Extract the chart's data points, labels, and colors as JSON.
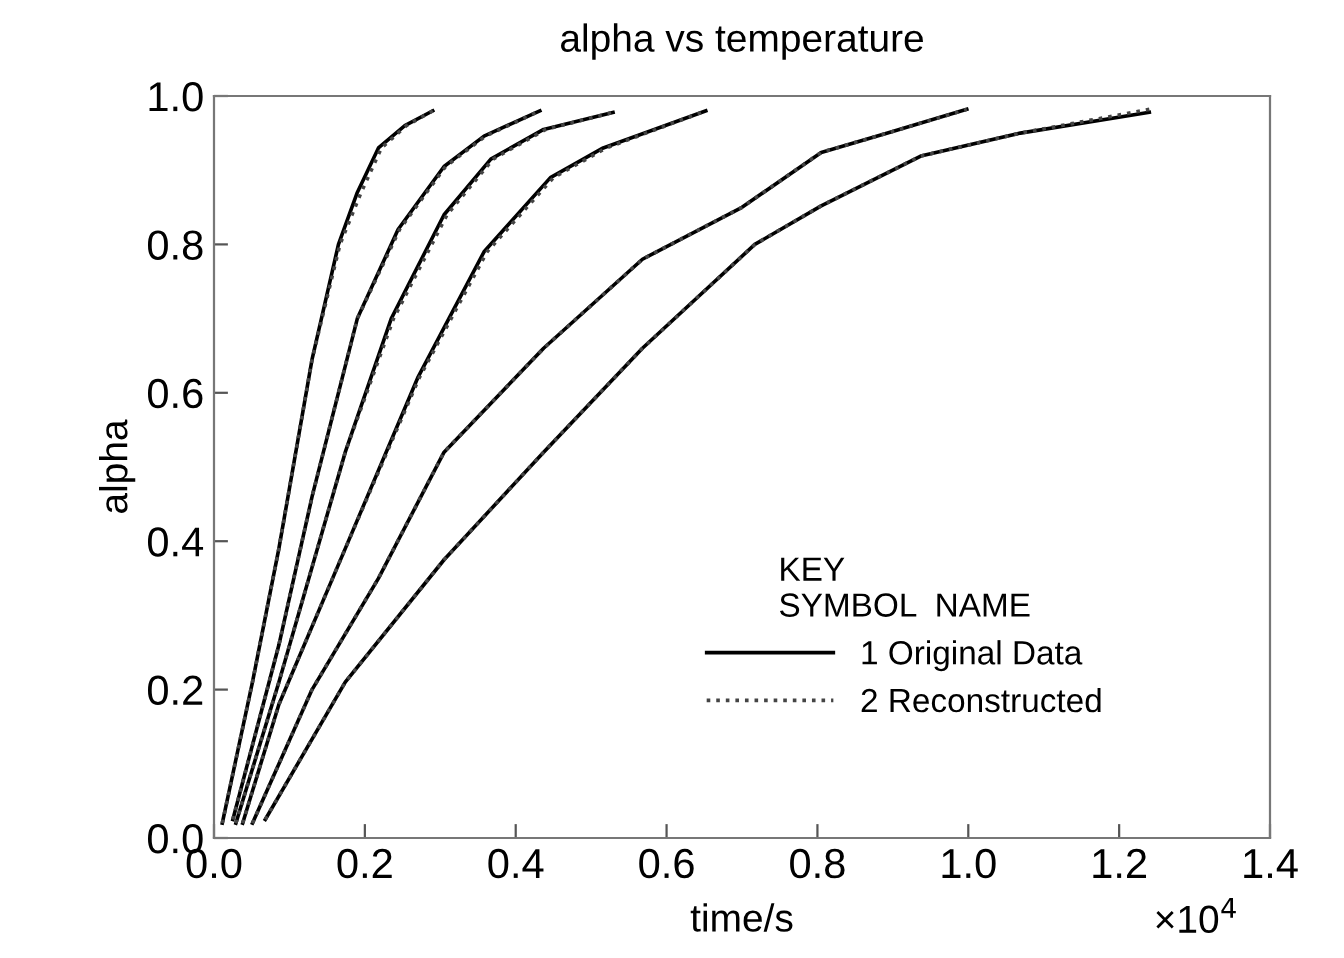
{
  "chart_data": {
    "type": "line",
    "title": "alpha vs temperature",
    "xlabel": "time/s",
    "ylabel": "alpha",
    "legend_title": "KEY\nSYMBOL  NAME",
    "legend": "bottom right",
    "grid": false,
    "marker": "none",
    "xlim": [
      0,
      1.4
    ],
    "xticks": [
      {
        "value": 0,
        "label": "0.0"
      },
      0.2,
      0.4,
      0.6,
      0.8,
      {
        "value": 1.0,
        "label": "1.0"
      },
      1.2,
      1.4
    ],
    "ylim": [
      0,
      1
    ],
    "yticks": [
      {
        "value": 0,
        "label": "0.0"
      },
      0.2,
      0.4,
      0.6,
      0.8,
      {
        "value": 1.0,
        "label": "1.0"
      }
    ],
    "annotations": [
      "×10$^{4}$"
    ],
    "series": [
      {
        "name": "1 Original Data",
        "color": "#000000",
        "line_style": "solid",
        "x": [
          0.011,
          0.051,
          0.086,
          0.13,
          0.165,
          0.19,
          0.218,
          0.253,
          0.29
        ],
        "values": [
          0.02,
          0.21,
          0.39,
          0.645,
          0.8,
          0.87,
          0.93,
          0.96,
          0.98
        ]
      },
      {
        "color": "#000000",
        "line_style": "solid",
        "x": [
          0.025,
          0.086,
          0.13,
          0.19,
          0.244,
          0.305,
          0.358,
          0.432
        ],
        "values": [
          0.025,
          0.26,
          0.46,
          0.7,
          0.82,
          0.905,
          0.946,
          0.98
        ]
      },
      {
        "color": "#000000",
        "line_style": "solid",
        "x": [
          0.029,
          0.086,
          0.174,
          0.235,
          0.305,
          0.367,
          0.437,
          0.529
        ],
        "values": [
          0.02,
          0.21,
          0.52,
          0.7,
          0.84,
          0.915,
          0.955,
          0.978
        ]
      },
      {
        "color": "#000000",
        "line_style": "solid",
        "x": [
          0.038,
          0.086,
          0.174,
          0.27,
          0.358,
          0.446,
          0.516,
          0.652
        ],
        "values": [
          0.02,
          0.18,
          0.39,
          0.62,
          0.79,
          0.89,
          0.93,
          0.98
        ]
      },
      {
        "color": "#000000",
        "line_style": "solid",
        "x": [
          0.051,
          0.13,
          0.218,
          0.305,
          0.437,
          0.568,
          0.7,
          0.805,
          0.893,
          0.998
        ],
        "values": [
          0.02,
          0.2,
          0.35,
          0.52,
          0.66,
          0.78,
          0.85,
          0.924,
          0.95,
          0.982
        ]
      },
      {
        "color": "#000000",
        "line_style": "solid",
        "x": [
          0.068,
          0.174,
          0.305,
          0.437,
          0.568,
          0.717,
          0.805,
          0.937,
          1.069,
          1.24
        ],
        "values": [
          0.025,
          0.21,
          0.375,
          0.52,
          0.66,
          0.8,
          0.852,
          0.919,
          0.95,
          0.978
        ]
      },
      {
        "name": "2 Reconstructed",
        "color": "#444444",
        "line_style": "dotted",
        "x": [
          0.011,
          0.051,
          0.086,
          0.13,
          0.167,
          0.195,
          0.222,
          0.255,
          0.29
        ],
        "values": [
          0.02,
          0.21,
          0.39,
          0.645,
          0.8,
          0.87,
          0.93,
          0.96,
          0.98
        ]
      },
      {
        "color": "#444444",
        "line_style": "dotted",
        "x": [
          0.025,
          0.086,
          0.13,
          0.19,
          0.246,
          0.307,
          0.36,
          0.432
        ],
        "values": [
          0.025,
          0.26,
          0.46,
          0.7,
          0.82,
          0.905,
          0.946,
          0.98
        ]
      },
      {
        "color": "#444444",
        "line_style": "dotted",
        "x": [
          0.029,
          0.086,
          0.174,
          0.238,
          0.309,
          0.37,
          0.44,
          0.529
        ],
        "values": [
          0.02,
          0.21,
          0.52,
          0.7,
          0.84,
          0.915,
          0.955,
          0.978
        ]
      },
      {
        "color": "#444444",
        "line_style": "dotted",
        "x": [
          0.038,
          0.086,
          0.174,
          0.272,
          0.362,
          0.45,
          0.52,
          0.652
        ],
        "values": [
          0.02,
          0.18,
          0.39,
          0.62,
          0.79,
          0.89,
          0.93,
          0.98
        ]
      },
      {
        "color": "#444444",
        "line_style": "dotted",
        "x": [
          0.051,
          0.13,
          0.218,
          0.305,
          0.437,
          0.568,
          0.7,
          0.805,
          0.893,
          0.998
        ],
        "values": [
          0.02,
          0.2,
          0.35,
          0.52,
          0.66,
          0.78,
          0.85,
          0.924,
          0.95,
          0.982
        ]
      },
      {
        "color": "#444444",
        "line_style": "dotted",
        "x": [
          0.068,
          0.174,
          0.305,
          0.437,
          0.568,
          0.717,
          0.805,
          0.937,
          1.069,
          1.24
        ],
        "values": [
          0.025,
          0.21,
          0.375,
          0.52,
          0.66,
          0.8,
          0.852,
          0.919,
          0.95,
          0.982
        ]
      }
    ]
  }
}
